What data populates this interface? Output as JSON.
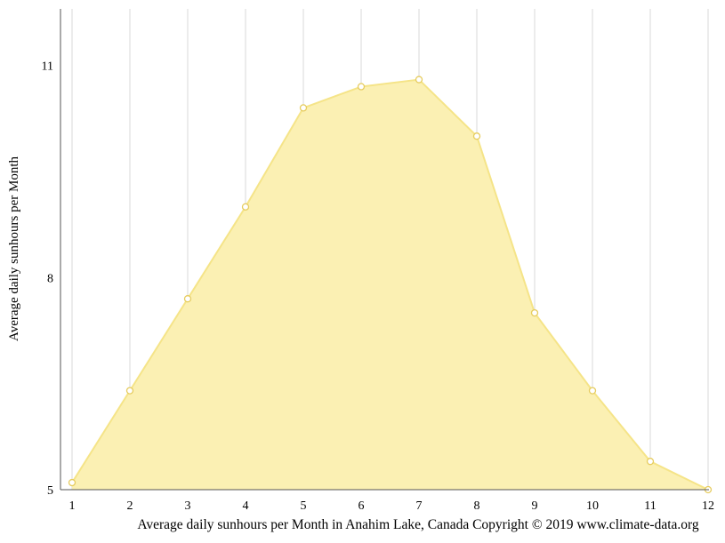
{
  "chart_data": {
    "type": "area",
    "title": "Average daily sunhours per Month in Anahim Lake, Canada Copyright © 2019 www.climate-data.org",
    "xlabel": "",
    "ylabel": "Average daily sunhours per Month",
    "x": [
      1,
      2,
      3,
      4,
      5,
      6,
      7,
      8,
      9,
      10,
      11,
      12
    ],
    "series": [
      {
        "name": "Average daily sunhours",
        "values": [
          5.1,
          6.4,
          7.7,
          9.0,
          10.4,
          10.7,
          10.8,
          10.0,
          7.5,
          6.4,
          5.4,
          5.0
        ]
      }
    ],
    "ylim": [
      5,
      11.8
    ],
    "yticks": [
      5,
      8,
      11
    ],
    "grid": "vertical-only",
    "legend": "none",
    "colors": {
      "area_fill": "#FBF0B3",
      "line": "#F5E488",
      "marker_fill": "#FFFFFF",
      "marker_stroke": "#E6CC5F",
      "grid": "#D9D9D9",
      "axis": "#555555",
      "text": "#000000"
    }
  }
}
